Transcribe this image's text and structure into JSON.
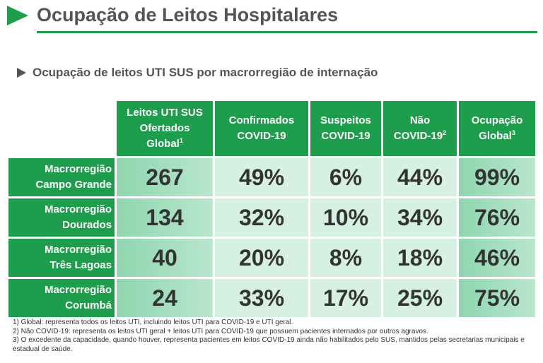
{
  "header": {
    "title": "Ocupação de Leitos Hospitalares"
  },
  "subtitle": "Ocupação de leitos UTI SUS por macrorregião de internação",
  "table": {
    "columns": [
      {
        "lines": [
          "Leitos UTI SUS",
          "Ofertados",
          "Global"
        ],
        "note": "1"
      },
      {
        "lines": [
          "Confirmados",
          "COVID-19"
        ]
      },
      {
        "lines": [
          "Suspeitos",
          "COVID-19"
        ]
      },
      {
        "lines": [
          "Não",
          "COVID-19"
        ],
        "note": "2"
      },
      {
        "lines": [
          "Ocupação",
          "Global"
        ],
        "note": "3"
      }
    ],
    "rows": [
      {
        "label": [
          "Macrorregião",
          "Campo Grande"
        ],
        "cells": [
          "267",
          "49%",
          "6%",
          "44%",
          "99%"
        ]
      },
      {
        "label": [
          "Macrorregião",
          "Dourados"
        ],
        "cells": [
          "134",
          "32%",
          "10%",
          "34%",
          "76%"
        ]
      },
      {
        "label": [
          "Macrorregião",
          "Três Lagoas"
        ],
        "cells": [
          "40",
          "20%",
          "8%",
          "18%",
          "46%"
        ]
      },
      {
        "label": [
          "Macrorregião",
          "Corumbá"
        ],
        "cells": [
          "24",
          "33%",
          "17%",
          "25%",
          "75%"
        ]
      }
    ]
  },
  "footnotes": [
    "1) Global: representa todos os leitos UTI, incluindo leitos UTI para COVID-19 e UTI geral.",
    "2) Não COVID-19: representa os leitos UTI geral + leitos UTI para COVID-19 que possuem pacientes internados por outros agravos.",
    "3) O excedente da capacidade, quando houver, representa pacientes em leitos COVID-19 ainda não habilitados pelo SUS, mantidos pelas secretarias municipais e estadual de saúde."
  ]
}
